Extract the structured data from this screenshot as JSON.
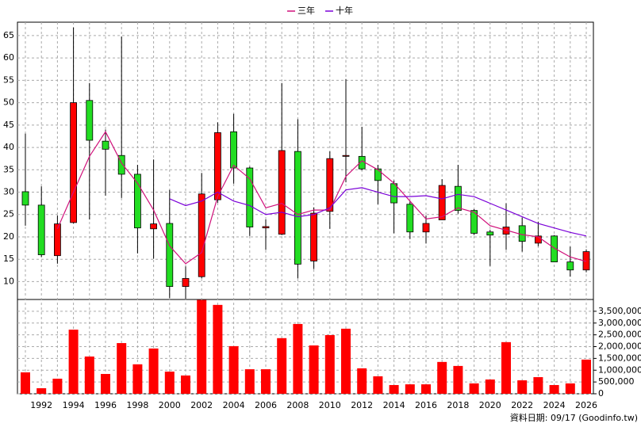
{
  "chart_data": {
    "type": "candlestick",
    "categories": [
      null,
      "1992",
      null,
      "1994",
      null,
      "1996",
      null,
      "1998",
      null,
      "2000",
      null,
      "2002",
      null,
      "2004",
      null,
      "2006",
      null,
      "2008",
      null,
      "2010",
      null,
      "2012",
      null,
      "2014",
      null,
      "2016",
      null,
      "2018",
      null,
      "2020",
      null,
      "2022",
      null,
      "2024",
      null,
      "2026"
    ],
    "open": [
      30.1,
      27.1,
      15.8,
      23.2,
      50.5,
      41.4,
      38.2,
      34,
      21.8,
      23,
      8.9,
      11.1,
      28.3,
      43.5,
      35.4,
      22.0,
      20.6,
      39.1,
      14.6,
      25.7,
      38.0,
      38,
      35.2,
      31.9,
      27.3,
      21.1,
      23.8,
      31.3,
      25.9,
      21.1,
      20.6,
      22.5,
      18.6,
      20.2,
      14.4,
      12.6
    ],
    "high": [
      43.1,
      31.3,
      24.8,
      66.8,
      54.4,
      44,
      64.8,
      36.1,
      37.3,
      30.5,
      13.4,
      34.3,
      45.6,
      47.5,
      35.7,
      23.9,
      54.4,
      46.3,
      26.6,
      39.1,
      55.3,
      44.6,
      36.1,
      32.6,
      28,
      24.8,
      32.9,
      36.1,
      26.2,
      21.6,
      27.5,
      24.3,
      23.4,
      20.4,
      17.8,
      17.2
    ],
    "low": [
      22.5,
      15.5,
      14,
      23,
      23.9,
      29.2,
      28.7,
      16.3,
      15.1,
      6.3,
      6.1,
      10.7,
      27.6,
      31.9,
      20.2,
      17.1,
      20.4,
      10.7,
      12.8,
      21.8,
      32.2,
      34.9,
      27.3,
      20.8,
      19.5,
      18.5,
      23.8,
      25.2,
      20.4,
      13.5,
      17.1,
      16.7,
      17.9,
      14.4,
      11.1,
      12.1
    ],
    "close": [
      27.1,
      16,
      22.9,
      50,
      41.6,
      39.6,
      34,
      22,
      22.9,
      8.9,
      10.7,
      29.6,
      43.3,
      35.4,
      22.2,
      22.3,
      39.3,
      13.9,
      25.3,
      37.5,
      38.2,
      35.2,
      32.6,
      27.6,
      21.1,
      23,
      31.5,
      25.9,
      20.8,
      20.4,
      22.2,
      19,
      20.2,
      14.4,
      12.6,
      16.7
    ],
    "up_color": "#ff0000",
    "down_color": "#22dd22",
    "ylim": [
      6,
      68
    ],
    "yticks": [
      10,
      15,
      20,
      25,
      30,
      35,
      40,
      45,
      50,
      55,
      60,
      65
    ],
    "grid": true,
    "series": [
      {
        "name": "三年",
        "color": "#d0107a",
        "values": [
          null,
          null,
          21.8,
          30,
          38,
          43.5,
          36.5,
          32,
          26,
          18,
          14,
          16.5,
          29,
          36,
          33,
          26.5,
          27.5,
          25,
          26,
          26,
          33.5,
          37,
          35,
          32,
          28,
          24,
          24.5,
          26.5,
          25.5,
          22.5,
          21.5,
          20.5,
          20,
          17.5,
          15.5,
          14.5
        ]
      },
      {
        "name": "十年",
        "color": "#7a00d8",
        "values": [
          null,
          null,
          null,
          null,
          null,
          null,
          null,
          null,
          null,
          28.5,
          27,
          28,
          30,
          28,
          27,
          25,
          25.5,
          24.5,
          25,
          26.5,
          30.5,
          31,
          30,
          29,
          29,
          29.2,
          28.5,
          29.5,
          29,
          27.5,
          26,
          24.5,
          23,
          22,
          21,
          20.2
        ]
      }
    ],
    "volume": {
      "color": "#ff0000",
      "values": [
        908000,
        235000,
        640000,
        2720000,
        1580000,
        840000,
        2150000,
        1250000,
        1920000,
        940000,
        775000,
        3980000,
        3770000,
        2020000,
        1040000,
        1040000,
        2360000,
        2960000,
        2050000,
        2490000,
        2760000,
        1080000,
        740000,
        370000,
        400000,
        400000,
        1350000,
        1180000,
        440000,
        605000,
        2190000,
        570000,
        705000,
        370000,
        440000,
        1450000
      ],
      "ylim": [
        0,
        4000000
      ],
      "yticks": [
        0,
        {
          "value": 500000,
          "label": "500,000"
        },
        {
          "value": 1000000,
          "label": "1,000,000"
        },
        {
          "value": 1500000,
          "label": "1,500,000"
        },
        {
          "value": 2000000,
          "label": "2,000,000"
        },
        {
          "value": 2500000,
          "label": "2,500,000"
        },
        {
          "value": 3000000,
          "label": "3,000,000"
        },
        {
          "value": 3500000,
          "label": "3,500,000"
        }
      ]
    },
    "footnote": "資料日期: 09/17 (Goodinfo.tw)"
  }
}
